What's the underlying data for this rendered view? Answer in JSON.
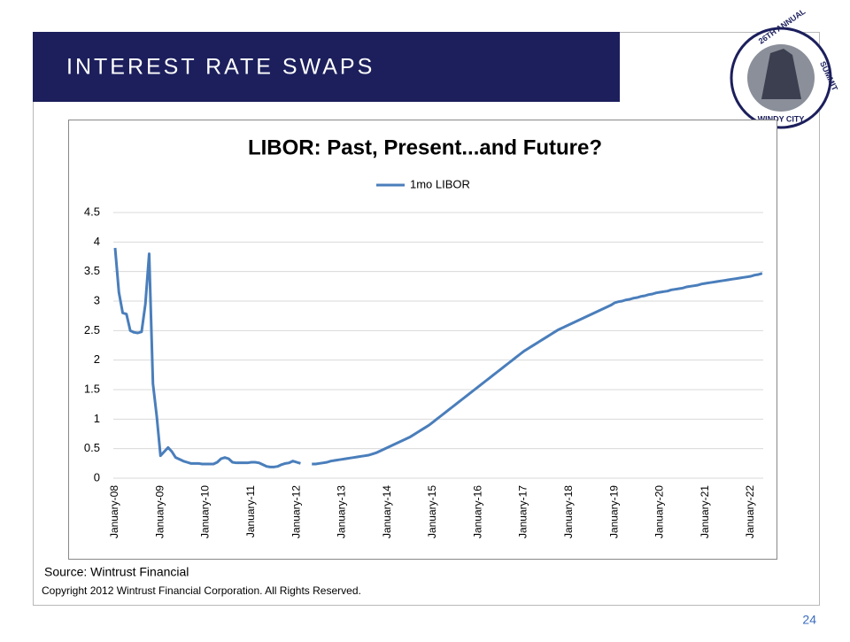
{
  "slide_title": "INTEREST RATE SWAPS",
  "logo": {
    "top": "26TH ANNUAL",
    "bottom": "WINDY CITY",
    "right": "SUMMIT"
  },
  "source": "Source:  Wintrust Financial",
  "copyright": "Copyright 2012 Wintrust Financial Corporation. All Rights Reserved.",
  "page_number": "24",
  "chart_data": {
    "type": "line",
    "title": "LIBOR:  Past, Present...and Future?",
    "categories": [
      "January-08",
      null,
      null,
      null,
      null,
      null,
      null,
      null,
      null,
      null,
      null,
      null,
      "January-09",
      null,
      null,
      null,
      null,
      null,
      null,
      null,
      null,
      null,
      null,
      null,
      "January-10",
      null,
      null,
      null,
      null,
      null,
      null,
      null,
      null,
      null,
      null,
      null,
      "January-11",
      null,
      null,
      null,
      null,
      null,
      null,
      null,
      null,
      null,
      null,
      null,
      "January-12",
      null,
      null,
      null,
      null,
      null,
      null,
      null,
      null,
      null,
      null,
      null,
      "January-13",
      null,
      null,
      null,
      null,
      null,
      null,
      null,
      null,
      null,
      null,
      null,
      "January-14",
      null,
      null,
      null,
      null,
      null,
      null,
      null,
      null,
      null,
      null,
      null,
      "January-15",
      null,
      null,
      null,
      null,
      null,
      null,
      null,
      null,
      null,
      null,
      null,
      "January-16",
      null,
      null,
      null,
      null,
      null,
      null,
      null,
      null,
      null,
      null,
      null,
      "January-17",
      null,
      null,
      null,
      null,
      null,
      null,
      null,
      null,
      null,
      null,
      null,
      "January-18",
      null,
      null,
      null,
      null,
      null,
      null,
      null,
      null,
      null,
      null,
      null,
      "January-19",
      null,
      null,
      null,
      null,
      null,
      null,
      null,
      null,
      null,
      null,
      null,
      "January-20",
      null,
      null,
      null,
      null,
      null,
      null,
      null,
      null,
      null,
      null,
      null,
      "January-21",
      null,
      null,
      null,
      null,
      null,
      null,
      null,
      null,
      null,
      null,
      null,
      "January-22",
      null,
      null,
      null
    ],
    "series": [
      {
        "name": "1mo LIBOR",
        "color": "#4a7ebb",
        "values": [
          3.9,
          3.15,
          2.8,
          2.78,
          2.5,
          2.47,
          2.46,
          2.48,
          2.95,
          3.8,
          1.6,
          1.05,
          0.38,
          0.45,
          0.52,
          0.45,
          0.35,
          0.32,
          0.29,
          0.27,
          0.25,
          0.25,
          0.25,
          0.24,
          0.24,
          0.24,
          0.24,
          0.27,
          0.33,
          0.35,
          0.33,
          0.27,
          0.26,
          0.26,
          0.26,
          0.26,
          0.27,
          0.27,
          0.26,
          0.23,
          0.2,
          0.19,
          0.19,
          0.2,
          0.23,
          0.25,
          0.26,
          0.29,
          0.27,
          0.25,
          null,
          null,
          0.24,
          0.24,
          0.25,
          0.26,
          0.27,
          0.29,
          0.3,
          0.31,
          0.32,
          0.33,
          0.34,
          0.35,
          0.36,
          0.37,
          0.38,
          0.39,
          0.41,
          0.43,
          0.46,
          0.49,
          0.52,
          0.55,
          0.58,
          0.61,
          0.64,
          0.67,
          0.7,
          0.74,
          0.78,
          0.82,
          0.86,
          0.9,
          0.95,
          1.0,
          1.05,
          1.1,
          1.15,
          1.2,
          1.25,
          1.3,
          1.35,
          1.4,
          1.45,
          1.5,
          1.55,
          1.6,
          1.65,
          1.7,
          1.75,
          1.8,
          1.85,
          1.9,
          1.95,
          2.0,
          2.05,
          2.1,
          2.15,
          2.19,
          2.23,
          2.27,
          2.31,
          2.35,
          2.39,
          2.43,
          2.47,
          2.51,
          2.54,
          2.57,
          2.6,
          2.63,
          2.66,
          2.69,
          2.72,
          2.75,
          2.78,
          2.81,
          2.84,
          2.87,
          2.9,
          2.93,
          2.97,
          2.99,
          3.0,
          3.02,
          3.03,
          3.05,
          3.06,
          3.08,
          3.09,
          3.11,
          3.12,
          3.14,
          3.15,
          3.16,
          3.17,
          3.19,
          3.2,
          3.21,
          3.22,
          3.24,
          3.25,
          3.26,
          3.27,
          3.29,
          3.3,
          3.31,
          3.32,
          3.33,
          3.34,
          3.35,
          3.36,
          3.37,
          3.38,
          3.39,
          3.4,
          3.41,
          3.42,
          3.44,
          3.45,
          3.47
        ]
      }
    ],
    "ylim": [
      0,
      4.5
    ],
    "yticks": [
      0,
      0.5,
      1,
      1.5,
      2,
      2.5,
      3,
      3.5,
      4,
      4.5
    ],
    "grid": true,
    "legend": "top"
  }
}
